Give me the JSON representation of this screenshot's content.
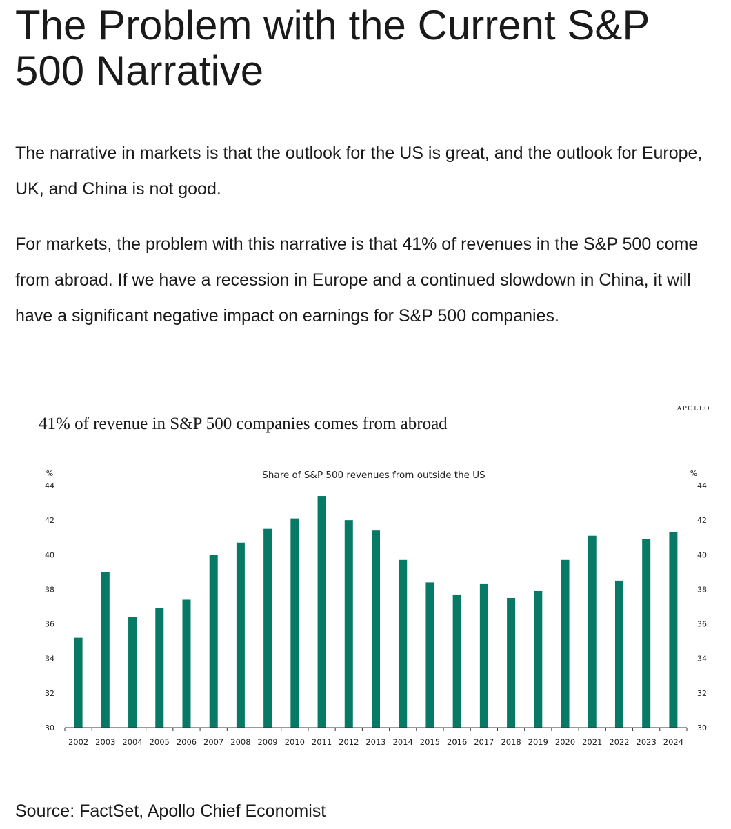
{
  "article": {
    "title": "The Problem with the Current S&P 500 Narrative",
    "paragraphs": [
      "The narrative in markets is that the outlook for the US is great, and the outlook for Europe, UK, and China is not good.",
      "For markets, the problem with this narrative is that 41% of revenues in the S&P 500 come from abroad. If we have a recession in Europe and a continued slowdown in China, it will have a significant negative impact on earnings for S&P 500 companies."
    ],
    "source": "Source: FactSet, Apollo Chief Economist"
  },
  "brand": "APOLLO",
  "chart_data": {
    "type": "bar",
    "title": "41% of revenue in S&P 500 companies comes from abroad",
    "subtitle": "Share of S&P 500 revenues from outside the US",
    "ylabel_left": "%",
    "ylabel_right": "%",
    "ylim": [
      30,
      44
    ],
    "yticks": [
      30,
      32,
      34,
      36,
      38,
      40,
      42,
      44
    ],
    "categories": [
      "2002",
      "2003",
      "2004",
      "2005",
      "2006",
      "2007",
      "2008",
      "2009",
      "2010",
      "2011",
      "2012",
      "2013",
      "2014",
      "2015",
      "2016",
      "2017",
      "2018",
      "2019",
      "2020",
      "2021",
      "2022",
      "2023",
      "2024"
    ],
    "values": [
      35.2,
      39.0,
      36.4,
      36.9,
      37.4,
      40.0,
      40.7,
      41.5,
      42.1,
      43.4,
      42.0,
      41.4,
      39.7,
      38.4,
      37.7,
      38.3,
      37.5,
      37.9,
      39.7,
      41.1,
      38.5,
      40.9,
      41.3
    ],
    "bar_color": "#077a66",
    "grid": false,
    "legend": "none"
  }
}
